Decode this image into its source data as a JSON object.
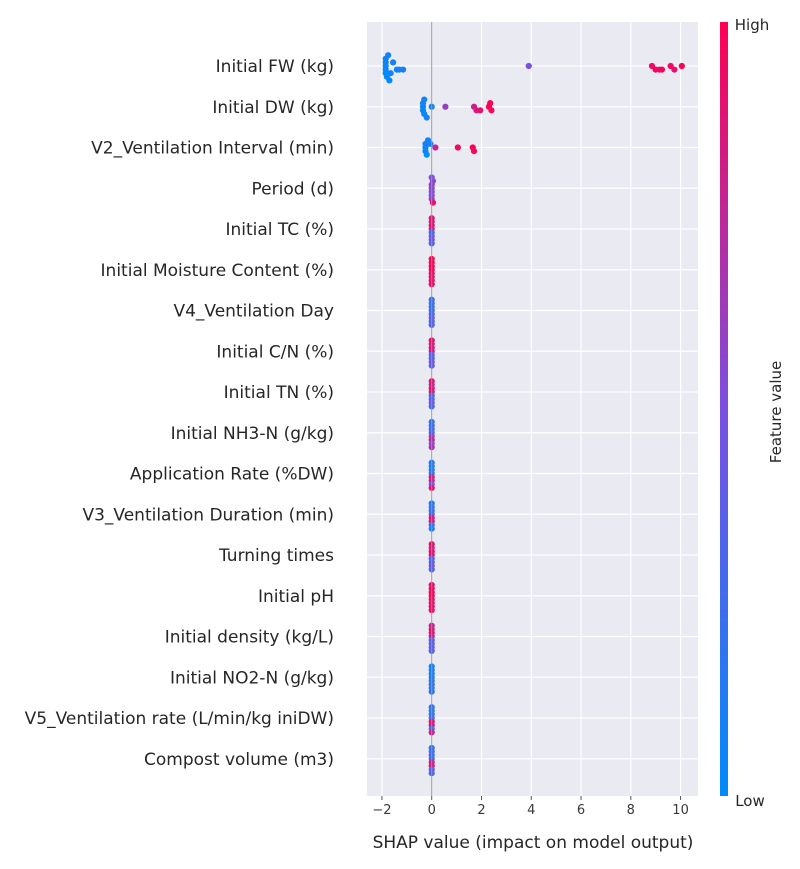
{
  "chart_data": {
    "type": "scatter",
    "subtype": "shap-beeswarm-summary",
    "xlabel": "SHAP value (impact on model output)",
    "xlim": [
      -2.6,
      10.7
    ],
    "xticks": [
      -2,
      0,
      2,
      4,
      6,
      8,
      10
    ],
    "xtick_labels": [
      "−2",
      "0",
      "2",
      "4",
      "6",
      "8",
      "10"
    ],
    "grid": true,
    "zero_line": 0,
    "colorbar": {
      "title": "Feature value",
      "high_label": "High",
      "low_label": "Low",
      "low_color": "#008bfb",
      "high_color": "#ff0052"
    },
    "features": [
      {
        "name": "Initial FW (kg)",
        "points": [
          {
            "x": -1.85,
            "v": 0.0
          },
          {
            "x": -1.85,
            "v": 0.05
          },
          {
            "x": -1.85,
            "v": 0.1
          },
          {
            "x": -1.85,
            "v": 0.0
          },
          {
            "x": -1.85,
            "v": 0.05
          },
          {
            "x": -1.8,
            "v": 0.0
          },
          {
            "x": -1.75,
            "v": 0.1
          },
          {
            "x": -1.7,
            "v": 0.0
          },
          {
            "x": -1.65,
            "v": 0.05
          },
          {
            "x": -1.55,
            "v": 0.1
          },
          {
            "x": -1.4,
            "v": 0.05
          },
          {
            "x": -1.3,
            "v": 0.1
          },
          {
            "x": -1.15,
            "v": 0.1
          },
          {
            "x": 3.9,
            "v": 0.5
          },
          {
            "x": 8.85,
            "v": 0.95
          },
          {
            "x": 9.0,
            "v": 1.0
          },
          {
            "x": 9.15,
            "v": 0.9
          },
          {
            "x": 9.25,
            "v": 1.0
          },
          {
            "x": 9.6,
            "v": 0.95
          },
          {
            "x": 9.75,
            "v": 0.9
          },
          {
            "x": 10.05,
            "v": 1.0
          }
        ]
      },
      {
        "name": "Initial DW (kg)",
        "points": [
          {
            "x": -0.35,
            "v": 0.0
          },
          {
            "x": -0.35,
            "v": 0.05
          },
          {
            "x": -0.35,
            "v": 0.1
          },
          {
            "x": -0.3,
            "v": 0.0
          },
          {
            "x": -0.3,
            "v": 0.05
          },
          {
            "x": -0.2,
            "v": 0.1
          },
          {
            "x": 0.0,
            "v": 0.1
          },
          {
            "x": 0.55,
            "v": 0.6
          },
          {
            "x": 1.7,
            "v": 0.8
          },
          {
            "x": 1.8,
            "v": 0.85
          },
          {
            "x": 1.95,
            "v": 0.9
          },
          {
            "x": 2.3,
            "v": 1.0
          },
          {
            "x": 2.4,
            "v": 0.95
          },
          {
            "x": 2.35,
            "v": 1.0
          }
        ]
      },
      {
        "name": "V2_Ventilation Interval (min)",
        "points": [
          {
            "x": -0.25,
            "v": 0.0
          },
          {
            "x": -0.25,
            "v": 0.05
          },
          {
            "x": -0.25,
            "v": 0.1
          },
          {
            "x": -0.2,
            "v": 0.0
          },
          {
            "x": -0.15,
            "v": 0.05
          },
          {
            "x": -0.05,
            "v": 0.1
          },
          {
            "x": 0.15,
            "v": 0.75
          },
          {
            "x": 1.05,
            "v": 0.95
          },
          {
            "x": 1.65,
            "v": 1.0
          },
          {
            "x": 1.7,
            "v": 0.95
          }
        ]
      },
      {
        "name": "Period (d)",
        "points": [
          {
            "x": 0.0,
            "v": 0.5
          },
          {
            "x": 0.0,
            "v": 0.55
          },
          {
            "x": 0.0,
            "v": 0.6
          },
          {
            "x": 0.0,
            "v": 0.5
          },
          {
            "x": 0.05,
            "v": 0.55
          },
          {
            "x": 0.0,
            "v": 0.6
          },
          {
            "x": 0.0,
            "v": 0.5
          },
          {
            "x": 0.05,
            "v": 0.9
          }
        ]
      },
      {
        "name": "Initial TC (%)",
        "points": [
          {
            "x": 0.0,
            "v": 0.8
          },
          {
            "x": 0.0,
            "v": 0.3
          },
          {
            "x": 0.0,
            "v": 0.9
          },
          {
            "x": 0.0,
            "v": 0.4
          },
          {
            "x": 0.0,
            "v": 0.85
          },
          {
            "x": 0.0,
            "v": 0.5
          },
          {
            "x": 0.0,
            "v": 0.9
          },
          {
            "x": 0.0,
            "v": 0.35
          }
        ]
      },
      {
        "name": "Initial Moisture Content (%)",
        "points": [
          {
            "x": 0.0,
            "v": 1.0
          },
          {
            "x": 0.0,
            "v": 0.95
          },
          {
            "x": 0.0,
            "v": 1.0
          },
          {
            "x": 0.0,
            "v": 0.9
          },
          {
            "x": 0.0,
            "v": 1.0
          },
          {
            "x": 0.0,
            "v": 0.95
          },
          {
            "x": 0.0,
            "v": 1.0
          },
          {
            "x": 0.0,
            "v": 0.95
          }
        ]
      },
      {
        "name": "V4_Ventilation Day",
        "points": [
          {
            "x": 0.0,
            "v": 0.2
          },
          {
            "x": 0.0,
            "v": 0.3
          },
          {
            "x": 0.0,
            "v": 0.25
          },
          {
            "x": 0.0,
            "v": 0.4
          },
          {
            "x": 0.0,
            "v": 0.2
          },
          {
            "x": 0.0,
            "v": 0.35
          },
          {
            "x": 0.0,
            "v": 0.25
          },
          {
            "x": 0.0,
            "v": 0.3
          }
        ]
      },
      {
        "name": "Initial C/N (%)",
        "points": [
          {
            "x": 0.0,
            "v": 0.8
          },
          {
            "x": 0.0,
            "v": 0.4
          },
          {
            "x": 0.0,
            "v": 0.9
          },
          {
            "x": 0.0,
            "v": 0.3
          },
          {
            "x": 0.0,
            "v": 0.85
          },
          {
            "x": 0.0,
            "v": 0.5
          },
          {
            "x": 0.0,
            "v": 0.9
          },
          {
            "x": 0.0,
            "v": 0.4
          }
        ]
      },
      {
        "name": "Initial TN (%)",
        "points": [
          {
            "x": 0.0,
            "v": 0.85
          },
          {
            "x": 0.0,
            "v": 0.35
          },
          {
            "x": 0.0,
            "v": 0.9
          },
          {
            "x": 0.0,
            "v": 0.3
          },
          {
            "x": 0.0,
            "v": 0.8
          },
          {
            "x": 0.0,
            "v": 0.45
          },
          {
            "x": 0.0,
            "v": 0.9
          },
          {
            "x": 0.0,
            "v": 0.3
          }
        ]
      },
      {
        "name": "Initial NH3-N (g/kg)",
        "points": [
          {
            "x": 0.0,
            "v": 0.3
          },
          {
            "x": 0.0,
            "v": 0.6
          },
          {
            "x": 0.0,
            "v": 0.25
          },
          {
            "x": 0.0,
            "v": 0.8
          },
          {
            "x": 0.0,
            "v": 0.3
          },
          {
            "x": 0.0,
            "v": 0.5
          },
          {
            "x": 0.0,
            "v": 0.2
          },
          {
            "x": 0.0,
            "v": 0.7
          }
        ]
      },
      {
        "name": "Application Rate (%DW)",
        "points": [
          {
            "x": 0.0,
            "v": 0.1
          },
          {
            "x": 0.0,
            "v": 0.85
          },
          {
            "x": 0.0,
            "v": 0.15
          },
          {
            "x": 0.0,
            "v": 0.8
          },
          {
            "x": 0.0,
            "v": 0.1
          },
          {
            "x": 0.0,
            "v": 0.5
          },
          {
            "x": 0.0,
            "v": 0.15
          },
          {
            "x": 0.0,
            "v": 0.9
          }
        ]
      },
      {
        "name": "V3_Ventilation Duration (min)",
        "points": [
          {
            "x": 0.0,
            "v": 0.3
          },
          {
            "x": 0.0,
            "v": 0.9
          },
          {
            "x": 0.0,
            "v": 0.25
          },
          {
            "x": 0.0,
            "v": 0.85
          },
          {
            "x": 0.0,
            "v": 0.2
          },
          {
            "x": 0.0,
            "v": 0.3
          },
          {
            "x": 0.0,
            "v": 0.15
          },
          {
            "x": 0.0,
            "v": 0.1
          }
        ]
      },
      {
        "name": "Turning times",
        "points": [
          {
            "x": 0.0,
            "v": 0.9
          },
          {
            "x": 0.0,
            "v": 0.4
          },
          {
            "x": 0.0,
            "v": 0.95
          },
          {
            "x": 0.0,
            "v": 0.3
          },
          {
            "x": 0.0,
            "v": 0.85
          },
          {
            "x": 0.0,
            "v": 0.5
          },
          {
            "x": 0.0,
            "v": 0.9
          },
          {
            "x": 0.0,
            "v": 0.35
          }
        ]
      },
      {
        "name": "Initial pH",
        "points": [
          {
            "x": 0.0,
            "v": 1.0
          },
          {
            "x": 0.0,
            "v": 0.95
          },
          {
            "x": 0.0,
            "v": 1.0
          },
          {
            "x": 0.0,
            "v": 0.9
          },
          {
            "x": 0.0,
            "v": 1.0
          },
          {
            "x": 0.0,
            "v": 0.95
          },
          {
            "x": 0.0,
            "v": 0.9
          },
          {
            "x": 0.0,
            "v": 0.95
          }
        ]
      },
      {
        "name": "Initial density (kg/L)",
        "points": [
          {
            "x": 0.0,
            "v": 0.8
          },
          {
            "x": 0.0,
            "v": 0.4
          },
          {
            "x": 0.0,
            "v": 0.85
          },
          {
            "x": 0.0,
            "v": 0.35
          },
          {
            "x": 0.0,
            "v": 0.9
          },
          {
            "x": 0.0,
            "v": 0.45
          },
          {
            "x": 0.0,
            "v": 0.8
          },
          {
            "x": 0.0,
            "v": 0.3
          }
        ]
      },
      {
        "name": "Initial NO2-N (g/kg)",
        "points": [
          {
            "x": 0.0,
            "v": 0.1
          },
          {
            "x": 0.0,
            "v": 0.15
          },
          {
            "x": 0.0,
            "v": 0.1
          },
          {
            "x": 0.0,
            "v": 0.2
          },
          {
            "x": 0.0,
            "v": 0.1
          },
          {
            "x": 0.0,
            "v": 0.15
          },
          {
            "x": 0.0,
            "v": 0.1
          },
          {
            "x": 0.0,
            "v": 0.2
          }
        ]
      },
      {
        "name": "V5_Ventilation rate (L/min/kg iniDW)",
        "points": [
          {
            "x": 0.0,
            "v": 0.2
          },
          {
            "x": 0.0,
            "v": 0.85
          },
          {
            "x": 0.0,
            "v": 0.25
          },
          {
            "x": 0.0,
            "v": 0.9
          },
          {
            "x": 0.0,
            "v": 0.15
          },
          {
            "x": 0.0,
            "v": 0.3
          },
          {
            "x": 0.0,
            "v": 0.2
          },
          {
            "x": 0.0,
            "v": 0.8
          }
        ]
      },
      {
        "name": "Compost volume (m3)",
        "points": [
          {
            "x": 0.0,
            "v": 0.2
          },
          {
            "x": 0.0,
            "v": 0.8
          },
          {
            "x": 0.0,
            "v": 0.3
          },
          {
            "x": 0.0,
            "v": 0.85
          },
          {
            "x": 0.0,
            "v": 0.25
          },
          {
            "x": 0.0,
            "v": 0.4
          },
          {
            "x": 0.0,
            "v": 0.2
          },
          {
            "x": 0.0,
            "v": 0.3
          }
        ]
      }
    ]
  }
}
